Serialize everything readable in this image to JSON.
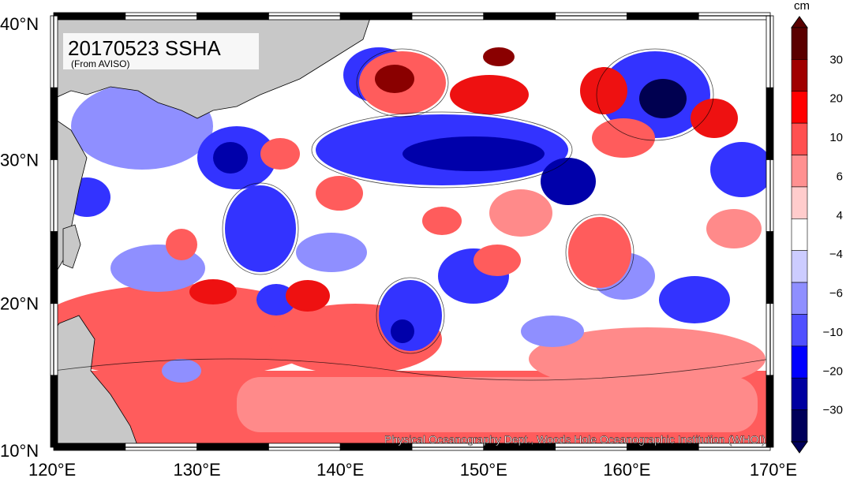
{
  "title": "20170523 SSHA",
  "subtitle": "(From AVISO)",
  "credit": "Physical Oceanography Dept., Woods Hole Oceanographic Institution (WHOI)",
  "units": "cm",
  "axes": {
    "lon_range": [
      120,
      170
    ],
    "lat_range": [
      10,
      40
    ],
    "lon_ticks": [
      {
        "value": 120,
        "label": "120°E"
      },
      {
        "value": 130,
        "label": "130°E"
      },
      {
        "value": 140,
        "label": "140°E"
      },
      {
        "value": 150,
        "label": "150°E"
      },
      {
        "value": 160,
        "label": "160°E"
      },
      {
        "value": 170,
        "label": "170°E"
      }
    ],
    "lat_ticks": [
      {
        "value": 10,
        "label": "10°N"
      },
      {
        "value": 20,
        "label": "20°N"
      },
      {
        "value": 30,
        "label": "30°N"
      },
      {
        "value": 40,
        "label": "40°N"
      }
    ]
  },
  "colorbar": {
    "labels": [
      "30",
      "20",
      "10",
      "6",
      "4",
      "−4",
      "−6",
      "−10",
      "−20",
      "−30"
    ],
    "colors": [
      "#5a0000",
      "#a00000",
      "#ff0000",
      "#ff5050",
      "#ff9090",
      "#ffcccc",
      "#ffffff",
      "#ccccff",
      "#8f8fff",
      "#5050ff",
      "#0000ff",
      "#0000a0",
      "#00005a"
    ]
  },
  "colors": {
    "land": "#c8c8c8",
    "neutral": "#ffffff",
    "pos_light": "#ffcccc",
    "pos_mid": "#ff8a8a",
    "pos": "#ff5c5c",
    "pos_strong": "#ee1111",
    "pos_dark": "#8a0000",
    "neg_light": "#ccccff",
    "neg_mid": "#8f8fff",
    "neg": "#3333ff",
    "neg_strong": "#0000aa",
    "neg_dark": "#000050"
  }
}
